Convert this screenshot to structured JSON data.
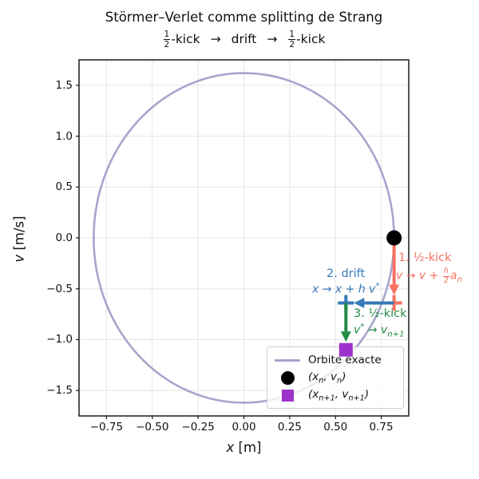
{
  "figure": {
    "title": "Störmer–Verlet comme splitting de Strang",
    "subtitle": {
      "frac_num": "1",
      "frac_den": "2",
      "kick": "-kick",
      "arrow": "→",
      "drift": "drift"
    }
  },
  "axes": {
    "x_label_var": "x",
    "x_label_unit": " [m]",
    "y_label_var": "v",
    "y_label_unit": " [m/s]"
  },
  "legend": {
    "orbit_label": "Orbite exacte",
    "start_pre": "(x",
    "start_sub1": "n",
    "start_mid": ", v",
    "start_sub2": "n",
    "start_post": ")",
    "end_pre": "(x",
    "end_sub1": "n+1",
    "end_mid": ", v",
    "end_sub2": "n+1",
    "end_post": ")"
  },
  "annotations": {
    "kick1": {
      "step": "1. ½-kick",
      "formula_lead": "v → v + ",
      "frac_num": "h",
      "frac_den": "2",
      "base": "a",
      "base_sub": "n"
    },
    "drift": {
      "step": "2. drift",
      "formula_lead": "x → x + h v",
      "sup": "*"
    },
    "kick2": {
      "step": "3. ½-kick",
      "lead": "v",
      "sup": "*",
      "mid": " → v",
      "sub": "n+1"
    }
  },
  "colors": {
    "orbit": "#a5a5cd",
    "kick": "#f9705f",
    "drift": "#3579b8",
    "kick2": "#238b45",
    "start_marker": "#000000",
    "end_marker": "#9d33cc",
    "grid": "#e5e5e5",
    "spine": "#1a1a1a"
  },
  "chart_data": {
    "type": "line",
    "title": "Störmer–Verlet comme splitting de Strang — ½-kick → drift → ½-kick",
    "xlabel": "x [m]",
    "ylabel": "v [m/s]",
    "xlim": [
      -0.9,
      0.9
    ],
    "ylim": [
      -1.75,
      1.75
    ],
    "grid": true,
    "legend_position": "lower right",
    "x_ticks": {
      "values": [
        -0.75,
        -0.5,
        -0.25,
        0,
        0.25,
        0.5,
        0.75
      ],
      "labels": [
        "−0.75",
        "−0.50",
        "−0.25",
        "0.00",
        "0.25",
        "0.50",
        "0.75"
      ]
    },
    "y_ticks": {
      "values": [
        1.5,
        1.0,
        0.5,
        0.0,
        -0.5,
        -1.0,
        -1.5
      ],
      "labels": [
        "1.5",
        "1.0",
        "0.5",
        "0.0",
        "−0.5",
        "−1.0",
        "−1.5"
      ]
    },
    "orbit_ellipse": {
      "center": [
        0,
        0
      ],
      "x_amplitude": 0.82,
      "v_amplitude": 1.62,
      "label": "Orbite exacte"
    },
    "verlet_step": {
      "start": [
        0.82,
        0
      ],
      "after_half_kick": [
        0.82,
        -0.64
      ],
      "after_drift": [
        0.557,
        -0.64
      ],
      "end": [
        0.557,
        -1.1
      ]
    }
  }
}
